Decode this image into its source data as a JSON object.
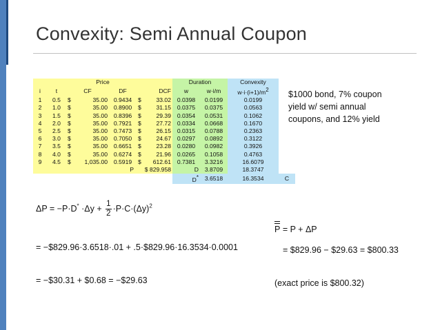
{
  "slide": {
    "title": "Convexity: Semi Annual Coupon",
    "accent_color": "#4f81bd",
    "accent_dark": "#1f497d"
  },
  "table": {
    "group_headers": {
      "price": "Price",
      "duration": "Duration",
      "convexity": "Convexity"
    },
    "columns": {
      "i": "i",
      "t": "t",
      "cf": "CF",
      "df": "DF",
      "dcf": "DCF",
      "w": "w",
      "wim": "w·i/m",
      "conv": "w·i·(i+1)/m"
    },
    "conv_exp": "2",
    "currency": "$",
    "rows": [
      {
        "i": "1",
        "t": "0.5",
        "cf": "35.00",
        "df": "0.9434",
        "dcf": "33.02",
        "w": "0.0398",
        "wim": "0.0199",
        "conv": "0.0199"
      },
      {
        "i": "2",
        "t": "1.0",
        "cf": "35.00",
        "df": "0.8900",
        "dcf": "31.15",
        "w": "0.0375",
        "wim": "0.0375",
        "conv": "0.0563"
      },
      {
        "i": "3",
        "t": "1.5",
        "cf": "35.00",
        "df": "0.8396",
        "dcf": "29.39",
        "w": "0.0354",
        "wim": "0.0531",
        "conv": "0.1062"
      },
      {
        "i": "4",
        "t": "2.0",
        "cf": "35.00",
        "df": "0.7921",
        "dcf": "27.72",
        "w": "0.0334",
        "wim": "0.0668",
        "conv": "0.1670"
      },
      {
        "i": "5",
        "t": "2.5",
        "cf": "35.00",
        "df": "0.7473",
        "dcf": "26.15",
        "w": "0.0315",
        "wim": "0.0788",
        "conv": "0.2363"
      },
      {
        "i": "6",
        "t": "3.0",
        "cf": "35.00",
        "df": "0.7050",
        "dcf": "24.67",
        "w": "0.0297",
        "wim": "0.0892",
        "conv": "0.3122"
      },
      {
        "i": "7",
        "t": "3.5",
        "cf": "35.00",
        "df": "0.6651",
        "dcf": "23.28",
        "w": "0.0280",
        "wim": "0.0982",
        "conv": "0.3926"
      },
      {
        "i": "8",
        "t": "4.0",
        "cf": "35.00",
        "df": "0.6274",
        "dcf": "21.96",
        "w": "0.0265",
        "wim": "0.1058",
        "conv": "0.4763"
      },
      {
        "i": "9",
        "t": "4.5",
        "cf": "1,035.00",
        "df": "0.5919",
        "dcf": "612.61",
        "w": "0.7381",
        "wim": "3.3216",
        "conv": "16.6079"
      }
    ],
    "price_row": {
      "label": "P",
      "value": "$ 829.958",
      "d_label": "D",
      "d_value": "3.8709",
      "c_value": "18.3747"
    },
    "dstar_row": {
      "label": "D",
      "sup": "*",
      "value": "3.6518",
      "c_value": "16.3534",
      "c_label": "C"
    }
  },
  "note": {
    "line1": "$1000 bond, 7% coupon",
    "line2": "yield w/ semi annual",
    "line3": "coupons, and 12% yield"
  },
  "formula": {
    "main_left": "ΔP = −P·D",
    "main_sup": "*",
    "main_mid": " ·Δy + ",
    "frac_num": "1",
    "frac_den": "2",
    "main_right": "·P·C·(Δy)",
    "main_right_sup": "2",
    "line2": "= −$829.96·3.6518·.01 + .5·$829.96·16.3534·0.0001",
    "line3": "= −$30.31 + $0.68 = −$29.63",
    "pbar_label": "P",
    "pbar_rest": " = P + ΔP",
    "pbar_line2": "= $829.96 − $29.63 = $800.33",
    "exact": "(exact price  is  $800.32)"
  }
}
